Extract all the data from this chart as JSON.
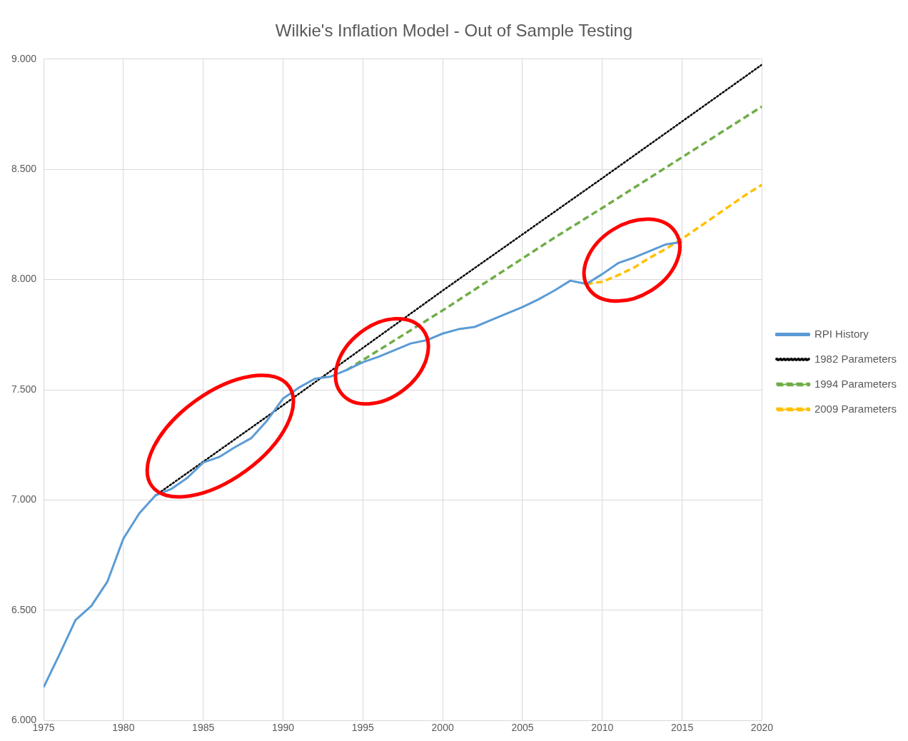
{
  "chart_data": {
    "type": "line",
    "title": "Wilkie's Inflation Model - Out of Sample Testing",
    "xlim": [
      1975,
      2020
    ],
    "xticks": [
      1975,
      1980,
      1985,
      1990,
      1995,
      2000,
      2005,
      2010,
      2015,
      2020
    ],
    "ylim": [
      6,
      9
    ],
    "yticks": [
      {
        "value": 6,
        "label": "6.000"
      },
      {
        "value": 6.5,
        "label": "6.500"
      },
      {
        "value": 7,
        "label": "7.000"
      },
      {
        "value": 7.5,
        "label": "7.500"
      },
      {
        "value": 8,
        "label": "8.000"
      },
      {
        "value": 8.5,
        "label": "8.500"
      },
      {
        "value": 9,
        "label": "9.000"
      }
    ],
    "grid": true,
    "legend": "right",
    "marker": "none",
    "series": [
      {
        "name": "RPI History",
        "color": "#5b9bd5",
        "line_style": "solid",
        "x": [
          1975,
          1976,
          1977,
          1978,
          1979,
          1980,
          1981,
          1982,
          1983,
          1984,
          1985,
          1986,
          1987,
          1988,
          1989,
          1990,
          1991,
          1992,
          1993,
          1994,
          1995,
          1996,
          1997,
          1998,
          1999,
          2000,
          2001,
          2002,
          2003,
          2004,
          2005,
          2006,
          2007,
          2008,
          2009,
          2010,
          2011,
          2012,
          2013,
          2014,
          2015
        ],
        "values": [
          6.15,
          6.3,
          6.455,
          6.52,
          6.63,
          6.825,
          6.94,
          7.02,
          7.05,
          7.1,
          7.17,
          7.195,
          7.24,
          7.28,
          7.36,
          7.46,
          7.51,
          7.55,
          7.56,
          7.59,
          7.625,
          7.65,
          7.68,
          7.71,
          7.725,
          7.755,
          7.775,
          7.785,
          7.815,
          7.845,
          7.875,
          7.91,
          7.95,
          7.995,
          7.98,
          8.025,
          8.075,
          8.1,
          8.13,
          8.16,
          8.17
        ]
      },
      {
        "name": "1982 Parameters",
        "color": "#000000",
        "line_style": "dotted",
        "x": [
          1982,
          1990,
          2000,
          2010,
          2020
        ],
        "values": [
          7.02,
          7.43,
          7.95,
          8.46,
          8.975
        ]
      },
      {
        "name": "1994 Parameters",
        "color": "#70ad47",
        "line_style": "dashed",
        "x": [
          1994,
          2000,
          2007,
          2010,
          2015,
          2020
        ],
        "values": [
          7.59,
          7.86,
          8.19,
          8.325,
          8.555,
          8.785
        ]
      },
      {
        "name": "2009 Parameters",
        "color": "#ffc000",
        "line_style": "dashed",
        "x": [
          2009,
          2010,
          2011,
          2012,
          2013,
          2014,
          2015,
          2016,
          2017,
          2018,
          2019,
          2020
        ],
        "values": [
          7.98,
          7.99,
          8.02,
          8.055,
          8.1,
          8.14,
          8.185,
          8.235,
          8.285,
          8.335,
          8.385,
          8.43
        ]
      }
    ]
  }
}
